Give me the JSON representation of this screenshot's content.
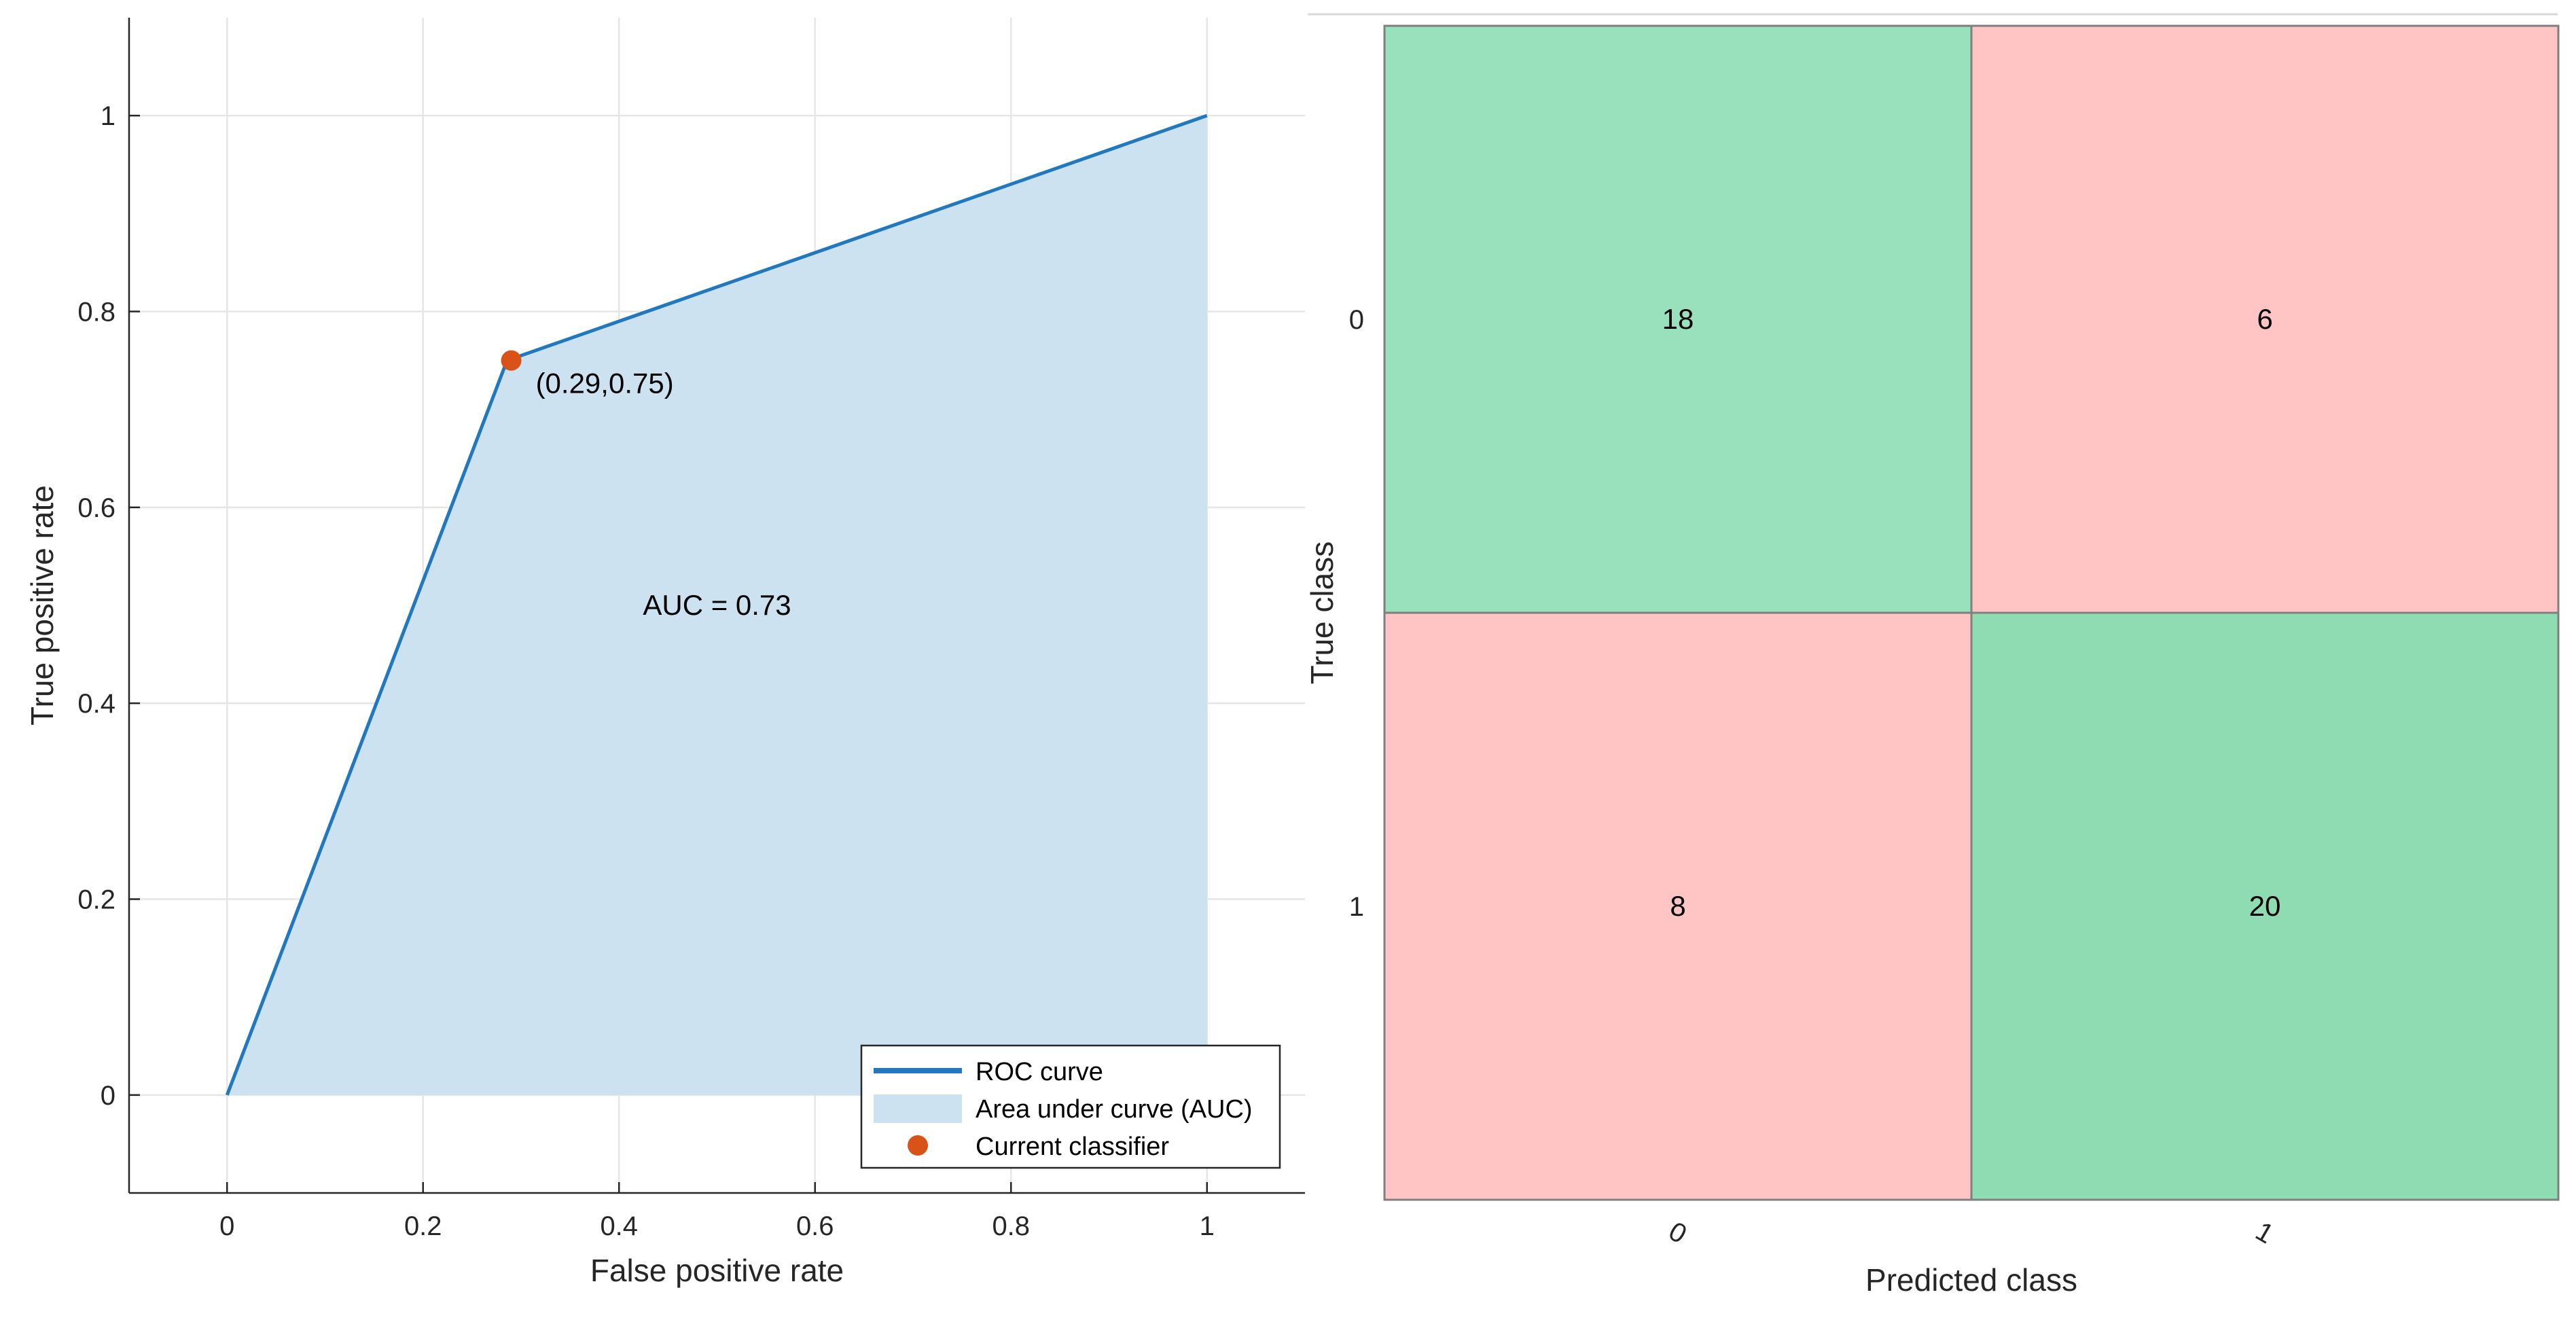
{
  "chart_data": [
    {
      "type": "line",
      "title": "",
      "xlabel": "False positive rate",
      "ylabel": "True positive rate",
      "xlim": [
        -0.1,
        1.1
      ],
      "ylim": [
        -0.1,
        1.1
      ],
      "xticks": [
        0,
        0.2,
        0.4,
        0.6,
        0.8,
        1
      ],
      "yticks": [
        0,
        0.2,
        0.4,
        0.6,
        0.8,
        1
      ],
      "xtick_labels": [
        "0",
        "0.2",
        "0.4",
        "0.6",
        "0.8",
        "1"
      ],
      "ytick_labels": [
        "0",
        "0.2",
        "0.4",
        "0.6",
        "0.8",
        "1"
      ],
      "grid": true,
      "series": [
        {
          "name": "ROC curve",
          "x": [
            0,
            0.2857,
            1
          ],
          "y": [
            0,
            0.75,
            1
          ],
          "color": "#2178BE"
        }
      ],
      "area": {
        "name": "Area under curve (AUC)",
        "color": "#CCE2F1"
      },
      "current_classifier": {
        "name": "Current classifier",
        "x": 0.29,
        "y": 0.75,
        "label": "(0.29,0.75)",
        "color": "#D95319"
      },
      "annotations": [
        {
          "text": "AUC = 0.73",
          "x": 0.5,
          "y": 0.5
        }
      ],
      "legend": {
        "placement": "bottom-right",
        "entries": [
          "ROC curve",
          "Area under curve (AUC)",
          "Current classifier"
        ]
      }
    },
    {
      "type": "heatmap",
      "title": "",
      "xlabel": "Predicted class",
      "ylabel": "True class",
      "x_categories": [
        "0",
        "1"
      ],
      "y_categories": [
        "0",
        "1"
      ],
      "values": [
        [
          18,
          6
        ],
        [
          8,
          20
        ]
      ],
      "colors": {
        "correct_light": "#99E0BC",
        "correct_dark": "#8FDCB2",
        "incorrect": "#FFC4C4",
        "border": "#7F7F7F"
      }
    }
  ]
}
